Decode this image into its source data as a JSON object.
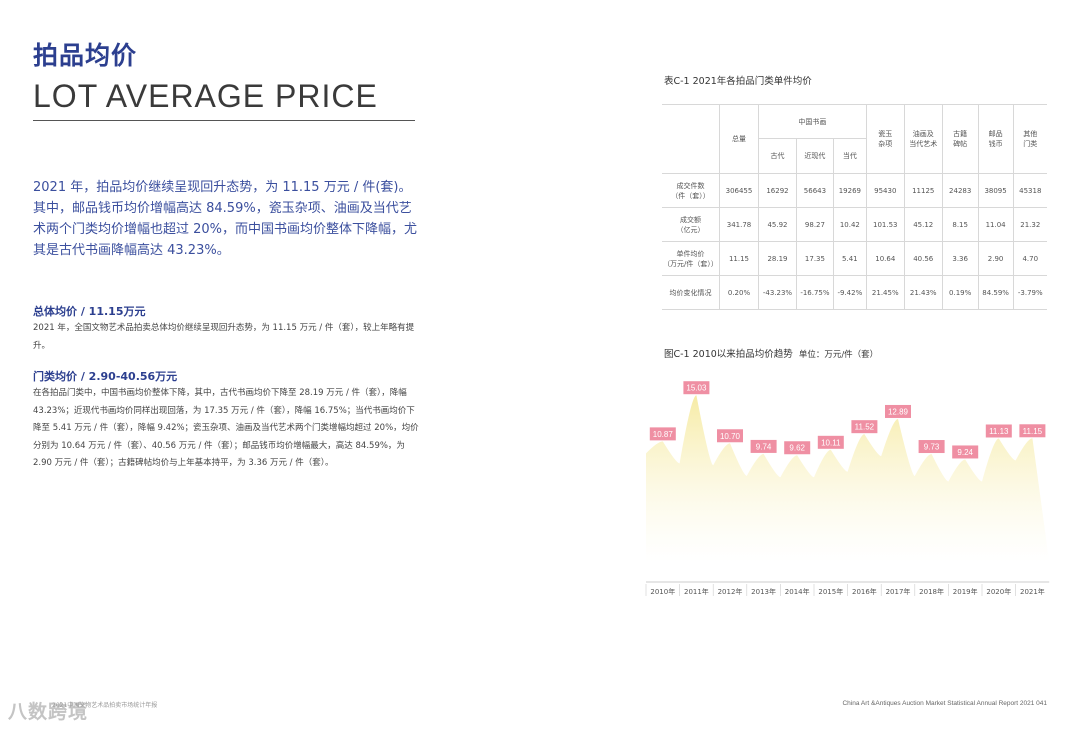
{
  "page": {
    "title_cn": "拍品均价",
    "title_en": "LOT AVERAGE PRICE",
    "intro": "2021 年，拍品均价继续呈现回升态势，为 11.15 万元 / 件(套)。其中，邮品钱币均价增幅高达 84.59%，瓷玉杂项、油画及当代艺术两个门类均价增幅也超过 20%，而中国书画均价整体下降幅，尤其是古代书画降幅高达 43.23%。",
    "section1": {
      "heading": "总体均价 / 11.15万元",
      "body": "2021 年，全国文物艺术品拍卖总体均价继续呈现回升态势，为 11.15 万元 / 件（套），较上年略有提升。"
    },
    "section2": {
      "heading": "门类均价 / 2.90-40.56万元",
      "body": "在各拍品门类中，中国书画均价整体下降，其中，古代书画均价下降至 28.19 万元 / 件（套），降幅 43.23%；近现代书画均价同样出现回落，为 17.35 万元 / 件（套），降幅 16.75%；当代书画均价下降至 5.41 万元 / 件（套），降幅 9.42%；瓷玉杂项、油画及当代艺术两个门类增幅均超过 20%，均价分别为 10.64 万元 / 件（套）、40.56 万元 / 件（套）；邮品钱币均价增幅最大，高达 84.59%，为 2.90 万元 / 件（套）；古籍碑帖均价与上年基本持平，为 3.36 万元 / 件（套）。"
    },
    "footer_left": "2021中国文物艺术品拍卖市场统计年报",
    "footer_right": "China Art &Antiques Auction Market Statistical Annual Report  2021   041",
    "watermark": "八数跨境"
  },
  "table": {
    "caption": "表C-1   2021年各拍品门类单件均价",
    "header_total": "总量",
    "header_group": "中国书画",
    "sub_headers": [
      "古代",
      "近现代",
      "当代"
    ],
    "other_headers": [
      "瓷玉\n杂项",
      "油画及\n当代艺术",
      "古籍\n碑帖",
      "邮品\n钱币",
      "其他\n门类"
    ],
    "rows": [
      {
        "label": "成交件数\n（件（套））",
        "values": [
          "306455",
          "16292",
          "56643",
          "19269",
          "95430",
          "11125",
          "24283",
          "38095",
          "45318"
        ]
      },
      {
        "label": "成交额\n（亿元）",
        "values": [
          "341.78",
          "45.92",
          "98.27",
          "10.42",
          "101.53",
          "45.12",
          "8.15",
          "11.04",
          "21.32"
        ]
      },
      {
        "label": "单件均价\n（万元/件（套））",
        "values": [
          "11.15",
          "28.19",
          "17.35",
          "5.41",
          "10.64",
          "40.56",
          "3.36",
          "2.90",
          "4.70"
        ]
      },
      {
        "label": "均价变化情况",
        "values": [
          "0.20%",
          "-43.23%",
          "-16.75%",
          "-9.42%",
          "21.45%",
          "21.43%",
          "0.19%",
          "84.59%",
          "-3.79%"
        ]
      }
    ]
  },
  "chart_caption": "图C-1   2010以来拍品均价趋势",
  "chart_unit": "单位：万元/件（套）",
  "chart_data": {
    "type": "area",
    "x": [
      "2010年",
      "2011年",
      "2012年",
      "2013年",
      "2014年",
      "2015年",
      "2016年",
      "2017年",
      "2018年",
      "2019年",
      "2020年",
      "2021年"
    ],
    "values": [
      10.87,
      15.03,
      10.7,
      9.74,
      9.62,
      10.11,
      11.52,
      12.89,
      9.73,
      9.24,
      11.13,
      11.15
    ],
    "ylim": [
      0,
      15.5
    ],
    "colors": {
      "label_bg": "#ef8fa3",
      "fill_top": "#f6eba5",
      "fill_bottom": "#ffffff"
    }
  }
}
